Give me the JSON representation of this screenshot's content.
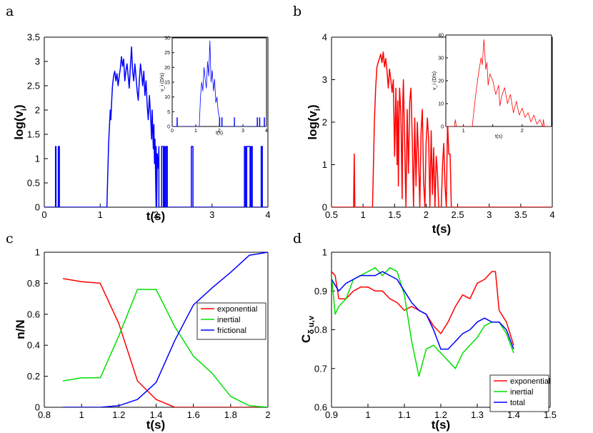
{
  "colors": {
    "blue": "#0000ff",
    "red": "#ff0000",
    "green": "#00e000",
    "axis": "#000000"
  },
  "chart_data": [
    {
      "id": "a",
      "panel_label": "a",
      "type": "line",
      "xlabel": "t(s)",
      "ylabel_base": "log(v",
      "ylabel_sub": "i",
      "ylabel_end": ")",
      "xlim": [
        0,
        4
      ],
      "ylim": [
        0,
        3.5
      ],
      "xticks": [
        0,
        1,
        2,
        3,
        4
      ],
      "yticks": [
        0,
        0.5,
        1,
        1.5,
        2,
        2.5,
        3,
        3.5
      ],
      "color": "blue",
      "series": [
        {
          "name": "log(vi)",
          "x": [
            0,
            0.2,
            0.2,
            0.21,
            0.21,
            0.25,
            0.25,
            0.27,
            0.27,
            1.12,
            1.15,
            1.18,
            1.19,
            1.21,
            1.22,
            1.24,
            1.26,
            1.28,
            1.3,
            1.32,
            1.34,
            1.36,
            1.38,
            1.4,
            1.42,
            1.44,
            1.46,
            1.48,
            1.5,
            1.52,
            1.54,
            1.56,
            1.58,
            1.6,
            1.62,
            1.64,
            1.66,
            1.68,
            1.7,
            1.72,
            1.74,
            1.76,
            1.78,
            1.8,
            1.82,
            1.84,
            1.86,
            1.88,
            1.9,
            1.92,
            1.93,
            1.95,
            1.96,
            1.97,
            1.98,
            2.0,
            2.0,
            2.01,
            2.02,
            2.04,
            2.05,
            2.05,
            2.1,
            2.1,
            2.13,
            2.13,
            2.15,
            2.15,
            2.16,
            2.16,
            2.18,
            2.18,
            2.2,
            2.2,
            2.63,
            2.63,
            2.66,
            2.66,
            3.58,
            3.58,
            3.6,
            3.6,
            3.62,
            3.62,
            3.68,
            3.68,
            3.7,
            3.7,
            3.72,
            3.72,
            3.88,
            3.88,
            3.9,
            3.9,
            4.0
          ],
          "y": [
            0,
            0,
            1.25,
            1.25,
            0,
            0,
            1.25,
            1.25,
            0,
            0,
            1.3,
            2.0,
            1.8,
            2.3,
            2.5,
            2.7,
            2.8,
            2.6,
            2.75,
            2.5,
            2.7,
            2.85,
            3.1,
            2.9,
            3.05,
            2.6,
            2.8,
            2.95,
            2.7,
            2.45,
            2.9,
            3.3,
            2.8,
            2.6,
            2.95,
            2.7,
            2.4,
            2.2,
            2.6,
            2.95,
            2.75,
            2.5,
            2.8,
            2.3,
            2.6,
            2.1,
            1.8,
            2.3,
            1.9,
            1.4,
            2.0,
            1.2,
            1.7,
            0.9,
            1.4,
            0,
            1.25,
            0,
            1.1,
            0.8,
            1.25,
            0,
            0,
            1.25,
            1.25,
            0,
            0,
            1.25,
            1.25,
            0,
            0,
            1.25,
            1.25,
            0,
            0,
            1.25,
            1.25,
            0,
            0,
            1.25,
            1.25,
            0,
            0,
            1.25,
            1.25,
            0,
            0,
            1.25,
            1.25,
            0,
            0,
            1.25,
            1.25,
            0,
            0
          ]
        }
      ],
      "inset": {
        "xlabel": "t(s)",
        "ylabel": "v_i (D/s)",
        "xlim": [
          0,
          4
        ],
        "ylim": [
          0,
          30
        ],
        "xticks": [
          0,
          1,
          2,
          3,
          4
        ],
        "yticks": [
          0,
          5,
          10,
          15,
          20,
          25,
          30
        ],
        "series": [
          {
            "name": "vi",
            "x": [
              0,
              0.2,
              0.2,
              0.22,
              0.22,
              1.15,
              1.2,
              1.25,
              1.3,
              1.35,
              1.4,
              1.45,
              1.5,
              1.55,
              1.6,
              1.65,
              1.7,
              1.75,
              1.8,
              1.85,
              1.9,
              1.95,
              2.0,
              2.0,
              2.02,
              2.02,
              2.1,
              2.1,
              2.12,
              2.12,
              2.63,
              2.63,
              2.65,
              2.65,
              3.6,
              3.6,
              3.62,
              3.62,
              3.7,
              3.7,
              3.72,
              3.72,
              3.9,
              3.9,
              3.92,
              3.92,
              4.0
            ],
            "y": [
              0,
              0,
              3,
              3,
              0,
              0,
              10,
              15,
              12,
              20,
              16,
              13,
              22,
              17,
              29,
              15,
              19,
              12,
              16,
              8,
              10,
              5,
              3,
              0,
              3,
              0,
              0,
              3,
              3,
              0,
              0,
              3,
              3,
              0,
              0,
              3,
              3,
              0,
              0,
              3,
              3,
              0,
              0,
              3,
              3,
              0,
              0
            ]
          }
        ]
      }
    },
    {
      "id": "b",
      "panel_label": "b",
      "type": "line",
      "xlabel": "t(s)",
      "ylabel_base": "log(v",
      "ylabel_sub": "i",
      "ylabel_end": ")",
      "xlim": [
        0.5,
        4
      ],
      "ylim": [
        0,
        4
      ],
      "xticks": [
        0.5,
        1,
        1.5,
        2,
        2.5,
        3,
        3.5,
        4
      ],
      "yticks": [
        0,
        1,
        2,
        3,
        4
      ],
      "color": "red",
      "series": [
        {
          "name": "log(vi)",
          "x": [
            0.5,
            0.85,
            0.86,
            0.87,
            1.15,
            1.18,
            1.2,
            1.22,
            1.24,
            1.26,
            1.28,
            1.3,
            1.32,
            1.34,
            1.36,
            1.38,
            1.4,
            1.42,
            1.44,
            1.46,
            1.48,
            1.5,
            1.52,
            1.54,
            1.55,
            1.56,
            1.57,
            1.58,
            1.6,
            1.62,
            1.63,
            1.64,
            1.66,
            1.68,
            1.7,
            1.72,
            1.74,
            1.76,
            1.78,
            1.8,
            1.82,
            1.84,
            1.86,
            1.88,
            1.9,
            1.92,
            1.94,
            1.96,
            1.98,
            2.0,
            2.02,
            2.04,
            2.06,
            2.08,
            2.1,
            2.12,
            2.14,
            2.16,
            2.18,
            2.2,
            2.24,
            2.26,
            2.28,
            2.3,
            2.32,
            2.34,
            2.36,
            2.38,
            2.4,
            4.0
          ],
          "y": [
            0,
            0,
            1.25,
            0,
            0,
            2.0,
            2.8,
            3.3,
            3.4,
            3.5,
            3.6,
            3.4,
            3.65,
            3.3,
            3.5,
            3.2,
            2.8,
            3.25,
            3.0,
            2.7,
            3.0,
            1.2,
            2.8,
            1.0,
            2.5,
            0.5,
            2.0,
            2.8,
            2.2,
            0.2,
            2.5,
            3.0,
            1.5,
            0,
            2.3,
            0.8,
            2.5,
            2.8,
            1.6,
            0,
            2.1,
            0.5,
            2.0,
            1.2,
            0,
            1.8,
            2.3,
            0.6,
            0,
            1.5,
            2.1,
            1.6,
            0,
            1.8,
            0.3,
            1.4,
            0,
            1.2,
            0.8,
            0,
            0,
            1.0,
            1.5,
            0.5,
            0,
            2.0,
            1.25,
            1.25,
            0,
            0
          ]
        }
      ],
      "inset": {
        "xlabel": "t(s)",
        "ylabel": "v_i (D/s)",
        "xlim": [
          0.7,
          2.5
        ],
        "ylim": [
          0,
          40
        ],
        "xticks": [
          1,
          1.5,
          2
        ],
        "xtick_labels": [
          "1",
          "",
          "2"
        ],
        "yticks": [
          0,
          10,
          20,
          30,
          40
        ],
        "series": [
          {
            "name": "vi",
            "x": [
              0.7,
              0.85,
              0.86,
              0.88,
              1.15,
              1.2,
              1.25,
              1.3,
              1.32,
              1.35,
              1.38,
              1.4,
              1.42,
              1.45,
              1.5,
              1.55,
              1.6,
              1.62,
              1.65,
              1.7,
              1.75,
              1.8,
              1.85,
              1.9,
              1.95,
              2.0,
              2.05,
              2.1,
              2.15,
              2.2,
              2.25,
              2.3,
              2.35,
              2.36,
              2.38,
              2.4,
              2.5
            ],
            "y": [
              0,
              0,
              3,
              0,
              0,
              12,
              22,
              30,
              27,
              38,
              25,
              28,
              18,
              23,
              20,
              14,
              18,
              9,
              13,
              17,
              10,
              14,
              6,
              11,
              5,
              8,
              4,
              6,
              2,
              5,
              1,
              3,
              0,
              3,
              0,
              0,
              0
            ]
          }
        ]
      }
    },
    {
      "id": "c",
      "panel_label": "c",
      "type": "line",
      "xlabel": "t(s)",
      "ylabel_base": "n/N",
      "ylabel_sub": "",
      "ylabel_end": "",
      "xlim": [
        0.8,
        2
      ],
      "ylim": [
        0,
        1
      ],
      "xticks": [
        0.8,
        1,
        1.2,
        1.4,
        1.6,
        1.8,
        2
      ],
      "yticks": [
        0,
        0.2,
        0.4,
        0.6,
        0.8,
        1
      ],
      "legend_position": "right-middle",
      "series": [
        {
          "name": "exponential",
          "color": "red",
          "x": [
            0.9,
            1.0,
            1.1,
            1.2,
            1.3,
            1.4,
            1.5,
            1.6,
            1.7,
            1.8,
            1.9,
            2.0
          ],
          "y": [
            0.83,
            0.81,
            0.8,
            0.54,
            0.17,
            0.05,
            0,
            0,
            0,
            0,
            0,
            0
          ]
        },
        {
          "name": "inertial",
          "color": "green",
          "x": [
            0.9,
            1.0,
            1.1,
            1.2,
            1.3,
            1.4,
            1.5,
            1.6,
            1.7,
            1.8,
            1.9,
            2.0
          ],
          "y": [
            0.17,
            0.19,
            0.19,
            0.46,
            0.76,
            0.76,
            0.52,
            0.33,
            0.22,
            0.07,
            0.01,
            0
          ]
        },
        {
          "name": "frictional",
          "color": "blue",
          "x": [
            0.9,
            1.0,
            1.1,
            1.2,
            1.3,
            1.4,
            1.5,
            1.6,
            1.7,
            1.8,
            1.9,
            2.0
          ],
          "y": [
            0,
            0,
            0,
            0.01,
            0.05,
            0.16,
            0.43,
            0.66,
            0.77,
            0.87,
            0.98,
            1.0
          ]
        }
      ]
    },
    {
      "id": "d",
      "panel_label": "d",
      "type": "line",
      "xlabel": "t(s)",
      "ylabel_base": "C",
      "ylabel_sub": "δ u,v",
      "ylabel_end": "",
      "xlim": [
        0.9,
        1.5
      ],
      "ylim": [
        0.6,
        1
      ],
      "xticks": [
        0.9,
        1,
        1.1,
        1.2,
        1.3,
        1.4,
        1.5
      ],
      "yticks": [
        0.6,
        0.7,
        0.8,
        0.9,
        1
      ],
      "legend_position": "bottom-right",
      "series": [
        {
          "name": "exponential",
          "color": "red",
          "x": [
            0.9,
            0.91,
            0.92,
            0.94,
            0.96,
            0.98,
            1.0,
            1.02,
            1.04,
            1.06,
            1.08,
            1.1,
            1.12,
            1.14,
            1.16,
            1.18,
            1.2,
            1.22,
            1.24,
            1.26,
            1.28,
            1.3,
            1.32,
            1.34,
            1.35,
            1.36,
            1.38,
            1.4
          ],
          "y": [
            0.95,
            0.94,
            0.88,
            0.88,
            0.9,
            0.91,
            0.91,
            0.9,
            0.9,
            0.88,
            0.87,
            0.85,
            0.86,
            0.85,
            0.84,
            0.81,
            0.79,
            0.82,
            0.86,
            0.89,
            0.88,
            0.92,
            0.93,
            0.95,
            0.95,
            0.85,
            0.82,
            0.76
          ]
        },
        {
          "name": "inertial",
          "color": "green",
          "x": [
            0.9,
            0.91,
            0.92,
            0.94,
            0.96,
            0.98,
            1.0,
            1.02,
            1.04,
            1.06,
            1.08,
            1.1,
            1.12,
            1.14,
            1.16,
            1.18,
            1.2,
            1.22,
            1.24,
            1.26,
            1.28,
            1.3,
            1.32,
            1.34,
            1.36,
            1.38,
            1.4
          ],
          "y": [
            0.94,
            0.84,
            0.86,
            0.88,
            0.93,
            0.94,
            0.95,
            0.96,
            0.94,
            0.96,
            0.95,
            0.89,
            0.77,
            0.68,
            0.75,
            0.76,
            0.74,
            0.72,
            0.7,
            0.74,
            0.76,
            0.78,
            0.81,
            0.82,
            0.82,
            0.79,
            0.74
          ]
        },
        {
          "name": "total",
          "color": "blue",
          "x": [
            0.9,
            0.92,
            0.94,
            0.96,
            0.98,
            1.0,
            1.02,
            1.04,
            1.06,
            1.08,
            1.1,
            1.12,
            1.14,
            1.16,
            1.18,
            1.2,
            1.22,
            1.24,
            1.26,
            1.28,
            1.3,
            1.32,
            1.34,
            1.36,
            1.38,
            1.4
          ],
          "y": [
            0.93,
            0.9,
            0.92,
            0.93,
            0.94,
            0.94,
            0.94,
            0.95,
            0.94,
            0.93,
            0.9,
            0.87,
            0.85,
            0.84,
            0.8,
            0.75,
            0.75,
            0.77,
            0.79,
            0.8,
            0.82,
            0.83,
            0.82,
            0.82,
            0.8,
            0.75
          ]
        }
      ]
    }
  ]
}
